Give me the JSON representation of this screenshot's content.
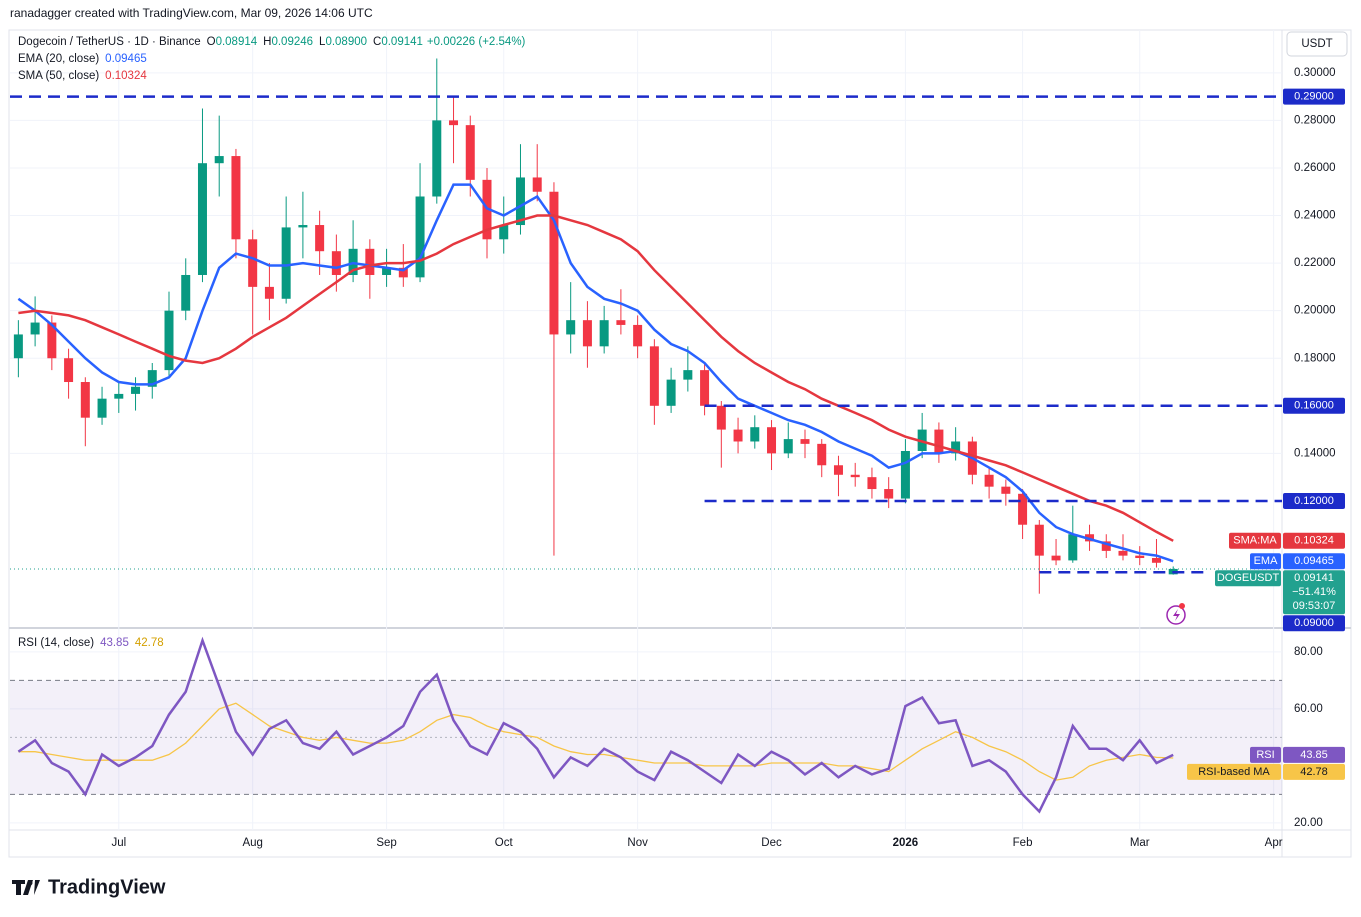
{
  "header": {
    "credit": "ranadagger created with TradingView.com, Mar 09, 2026 14:06 UTC",
    "symbol": "Dogecoin / TetherUS · 1D · Binance",
    "ohlc": [
      [
        "O",
        "0.08914"
      ],
      [
        "H",
        "0.09246"
      ],
      [
        "L",
        "0.08900"
      ],
      [
        "C",
        "0.09141"
      ]
    ],
    "change": "+0.00226 (+2.54%)",
    "currency": "USDT",
    "logo": "TradingView"
  },
  "chart_data": [
    {
      "type": "candlestick",
      "up_color": "#089981",
      "down_color": "#f23645",
      "categories": [
        null,
        null,
        null,
        null,
        null,
        null,
        "Jul",
        null,
        null,
        null,
        null,
        null,
        null,
        null,
        "Aug",
        null,
        null,
        null,
        null,
        null,
        null,
        null,
        "Sep",
        null,
        null,
        null,
        null,
        null,
        null,
        "Oct",
        null,
        null,
        null,
        null,
        null,
        null,
        null,
        "Nov",
        null,
        null,
        null,
        null,
        null,
        null,
        null,
        "Dec",
        null,
        null,
        null,
        null,
        null,
        null,
        null,
        "2026",
        null,
        null,
        null,
        null,
        null,
        null,
        "Feb",
        null,
        null,
        null,
        null,
        null,
        null,
        "Mar",
        null,
        null,
        null,
        null,
        null,
        null,
        null,
        "Apr"
      ],
      "open": [
        0.18,
        0.19,
        0.195,
        0.18,
        0.17,
        0.155,
        0.163,
        0.165,
        0.168,
        0.175,
        0.2,
        0.215,
        0.262,
        0.265,
        0.23,
        0.21,
        0.205,
        0.235,
        0.236,
        0.225,
        0.215,
        0.226,
        0.215,
        0.218,
        0.214,
        0.248,
        0.28,
        0.278,
        0.255,
        0.23,
        0.236,
        0.256,
        0.25,
        0.19,
        0.196,
        0.185,
        0.196,
        0.194,
        0.185,
        0.16,
        0.171,
        0.175,
        0.16,
        0.15,
        0.145,
        0.151,
        0.14,
        0.146,
        0.144,
        0.135,
        0.131,
        0.13,
        0.125,
        0.121,
        0.141,
        0.15,
        0.14,
        0.145,
        0.131,
        0.126,
        0.123,
        0.11,
        0.097,
        0.095,
        0.106,
        0.103,
        0.099,
        0.097,
        0.096,
        0.08914,
        null,
        null,
        null,
        null,
        null,
        null
      ],
      "high": [
        0.196,
        0.206,
        0.198,
        0.184,
        0.172,
        0.168,
        0.17,
        0.172,
        0.178,
        0.208,
        0.222,
        0.285,
        0.282,
        0.268,
        0.234,
        0.22,
        0.248,
        0.25,
        0.242,
        0.232,
        0.238,
        0.23,
        0.226,
        0.228,
        0.262,
        0.306,
        0.29,
        0.282,
        0.26,
        0.248,
        0.27,
        0.27,
        0.254,
        0.212,
        0.204,
        0.202,
        0.209,
        0.198,
        0.188,
        0.176,
        0.185,
        0.178,
        0.162,
        0.155,
        0.156,
        0.154,
        0.153,
        0.15,
        0.146,
        0.139,
        0.136,
        0.134,
        0.13,
        0.146,
        0.157,
        0.153,
        0.151,
        0.147,
        0.134,
        0.129,
        0.125,
        0.112,
        0.104,
        0.118,
        0.11,
        0.106,
        0.106,
        0.101,
        0.104,
        0.09246,
        null,
        null,
        null,
        null,
        null,
        null
      ],
      "low": [
        0.172,
        0.185,
        0.175,
        0.163,
        0.143,
        0.152,
        0.157,
        0.158,
        0.163,
        0.172,
        0.196,
        0.212,
        0.248,
        0.222,
        0.19,
        0.196,
        0.203,
        0.222,
        0.215,
        0.208,
        0.212,
        0.205,
        0.21,
        0.21,
        0.212,
        0.245,
        0.262,
        0.248,
        0.222,
        0.224,
        0.232,
        0.246,
        0.097,
        0.182,
        0.176,
        0.182,
        0.19,
        0.18,
        0.152,
        0.157,
        0.166,
        0.156,
        0.134,
        0.14,
        0.142,
        0.133,
        0.138,
        0.138,
        0.13,
        0.122,
        0.126,
        0.121,
        0.117,
        0.119,
        0.138,
        0.136,
        0.137,
        0.127,
        0.121,
        0.118,
        0.104,
        0.081,
        0.093,
        0.094,
        0.099,
        0.096,
        0.095,
        0.093,
        0.092,
        0.089,
        null,
        null,
        null,
        null,
        null,
        null
      ],
      "close": [
        0.19,
        0.195,
        0.18,
        0.17,
        0.155,
        0.163,
        0.165,
        0.168,
        0.175,
        0.2,
        0.215,
        0.262,
        0.265,
        0.23,
        0.21,
        0.205,
        0.235,
        0.236,
        0.225,
        0.215,
        0.226,
        0.215,
        0.218,
        0.214,
        0.248,
        0.28,
        0.278,
        0.255,
        0.23,
        0.236,
        0.256,
        0.25,
        0.19,
        0.196,
        0.185,
        0.196,
        0.194,
        0.185,
        0.16,
        0.171,
        0.175,
        0.16,
        0.15,
        0.145,
        0.151,
        0.14,
        0.146,
        0.144,
        0.135,
        0.131,
        0.13,
        0.125,
        0.121,
        0.141,
        0.15,
        0.14,
        0.145,
        0.131,
        0.126,
        0.123,
        0.11,
        0.097,
        0.095,
        0.106,
        0.103,
        0.099,
        0.097,
        0.096,
        0.094,
        0.09141,
        null,
        null,
        null,
        null,
        null,
        null
      ],
      "series": [
        {
          "name": "EMA (20, close)",
          "tag": "EMA",
          "color": "#2962ff",
          "values": [
            0.205,
            0.2,
            0.194,
            0.187,
            0.18,
            0.174,
            0.17,
            0.169,
            0.169,
            0.172,
            0.18,
            0.2,
            0.218,
            0.224,
            0.222,
            0.219,
            0.219,
            0.22,
            0.219,
            0.218,
            0.22,
            0.219,
            0.218,
            0.217,
            0.222,
            0.238,
            0.253,
            0.253,
            0.243,
            0.24,
            0.244,
            0.248,
            0.238,
            0.22,
            0.21,
            0.205,
            0.203,
            0.2,
            0.192,
            0.186,
            0.183,
            0.178,
            0.17,
            0.163,
            0.16,
            0.157,
            0.154,
            0.152,
            0.149,
            0.145,
            0.142,
            0.139,
            0.134,
            0.136,
            0.14,
            0.14,
            0.141,
            0.138,
            0.134,
            0.13,
            0.124,
            0.115,
            0.109,
            0.106,
            0.104,
            0.102,
            0.1,
            0.098,
            0.097,
            0.09465,
            null,
            null,
            null,
            null,
            null,
            null
          ]
        },
        {
          "name": "SMA (50, close)",
          "tag": "SMA:MA",
          "color": "#e5373f",
          "values": [
            0.199,
            0.2,
            0.199,
            0.198,
            0.196,
            0.193,
            0.19,
            0.187,
            0.184,
            0.181,
            0.179,
            0.178,
            0.18,
            0.184,
            0.189,
            0.193,
            0.197,
            0.202,
            0.207,
            0.212,
            0.217,
            0.219,
            0.22,
            0.22,
            0.221,
            0.224,
            0.228,
            0.231,
            0.234,
            0.236,
            0.238,
            0.24,
            0.24,
            0.238,
            0.236,
            0.233,
            0.23,
            0.225,
            0.217,
            0.21,
            0.203,
            0.196,
            0.189,
            0.183,
            0.178,
            0.174,
            0.17,
            0.167,
            0.163,
            0.16,
            0.157,
            0.154,
            0.15,
            0.147,
            0.145,
            0.143,
            0.141,
            0.139,
            0.137,
            0.135,
            0.132,
            0.129,
            0.126,
            0.123,
            0.12,
            0.118,
            0.115,
            0.111,
            0.107,
            0.10324,
            null,
            null,
            null,
            null,
            null,
            null
          ]
        }
      ],
      "ylim": [
        0.067,
        0.318
      ],
      "yticks": [
        {
          "value": 0.3,
          "label": "0.30000"
        },
        {
          "value": 0.28,
          "label": "0.28000"
        },
        {
          "value": 0.26,
          "label": "0.26000"
        },
        {
          "value": 0.24,
          "label": "0.24000"
        },
        {
          "value": 0.22,
          "label": "0.22000"
        },
        {
          "value": 0.2,
          "label": "0.20000"
        },
        {
          "value": 0.18,
          "label": "0.18000"
        },
        {
          "value": 0.14,
          "label": "0.14000"
        }
      ],
      "levels": [
        {
          "value": 0.29,
          "label": "0.29000"
        },
        {
          "value": 0.16,
          "label": "0.16000"
        },
        {
          "value": 0.12,
          "label": "0.12000"
        },
        {
          "value": 0.09,
          "label": "0.09000"
        }
      ],
      "level_color": "#1c2bc9",
      "last": {
        "name": "DOGEUSDT",
        "color": "#22a18f",
        "change": "−51.41%",
        "countdown": "09:53:07"
      },
      "grid": true
    },
    {
      "type": "line",
      "title": "RSI (14, close)",
      "ylim": [
        17.5,
        87.7
      ],
      "yticks": [
        {
          "value": 80,
          "label": "80.00"
        },
        {
          "value": 60,
          "label": "60.00"
        },
        {
          "value": 20,
          "label": "20.00"
        }
      ],
      "band": [
        30,
        70
      ],
      "midline": 50,
      "band_color": "#7e57c2",
      "series": [
        {
          "name": "RSI",
          "color": "#7e57c2",
          "text_color": "#ffffff",
          "values": [
            45,
            49,
            41,
            38,
            30,
            44,
            40,
            43,
            47,
            58,
            66,
            84,
            68,
            52,
            44,
            53,
            56,
            48,
            46,
            52,
            44,
            47,
            50,
            54,
            66,
            72,
            56,
            47,
            44,
            55,
            52,
            46,
            36,
            43,
            40,
            46,
            43,
            38,
            35,
            45,
            42,
            38,
            34,
            44,
            40,
            45,
            42,
            37,
            41,
            36,
            40,
            37,
            39,
            61,
            64,
            55,
            56,
            40,
            42,
            38,
            30,
            24,
            36,
            54,
            46,
            46,
            42,
            49,
            41,
            43.85,
            null,
            null,
            null,
            null,
            null,
            null
          ]
        },
        {
          "name": "RSI-based MA",
          "color": "#f7c548",
          "text_color": "#131722",
          "values": [
            45,
            45,
            44,
            43,
            42,
            42,
            42,
            42,
            42,
            44,
            48,
            54,
            60,
            62,
            58,
            54,
            52,
            50,
            49,
            50,
            49,
            48,
            48,
            49,
            52,
            56,
            58,
            57,
            54,
            52,
            51,
            50,
            47,
            45,
            44,
            44,
            43,
            42,
            41,
            41,
            41,
            40,
            40,
            40,
            40,
            41,
            41,
            41,
            41,
            40,
            40,
            39,
            38,
            42,
            46,
            49,
            52,
            50,
            47,
            45,
            42,
            38,
            35,
            36,
            40,
            42,
            43,
            44,
            43,
            42.78,
            null,
            null,
            null,
            null,
            null,
            null
          ]
        }
      ]
    }
  ]
}
